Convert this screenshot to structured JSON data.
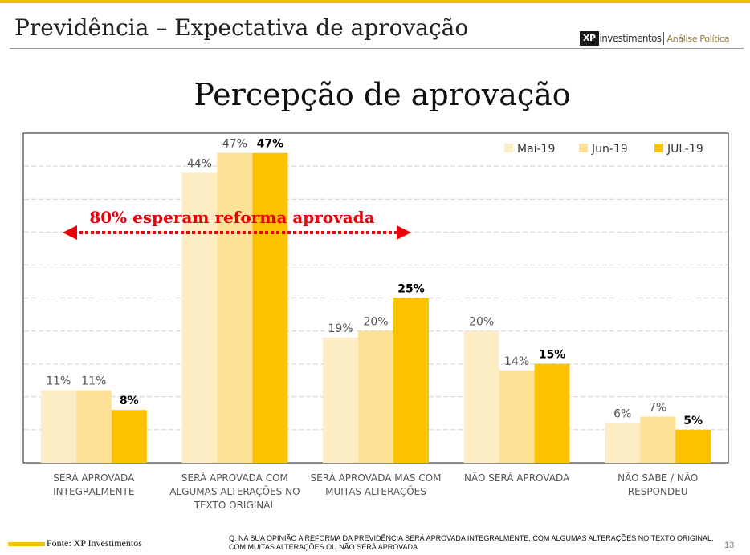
{
  "header": {
    "title": "Previdência – Expectativa de aprovação",
    "brand_logo": "XP",
    "brand_name": "investimentos",
    "brand_tag": "Análise Política"
  },
  "colors": {
    "accent": "#f5c100",
    "mai19": "#fdedc4",
    "jun19": "#fce197",
    "jul19": "#fcc200",
    "annotation": "#e8000b",
    "grid": "#d0d0d0"
  },
  "chart_data": {
    "type": "bar",
    "title": "Percepção de aprovação",
    "categories": [
      [
        "SERÁ APROVADA",
        "INTEGRALMENTE"
      ],
      [
        "SERÁ APROVADA COM",
        "ALGUMAS ALTERAÇÕES NO",
        "TEXTO ORIGINAL"
      ],
      [
        "SERÁ APROVADA MAS COM",
        "MUITAS ALTERAÇÕES"
      ],
      [
        "NÃO SERÁ APROVADA"
      ],
      [
        "NÃO SABE / NÃO",
        "RESPONDEU"
      ]
    ],
    "series": [
      {
        "name": "Mai-19",
        "values": [
          11,
          44,
          19,
          20,
          6
        ],
        "color": "#fdedc4",
        "bold_labels": false
      },
      {
        "name": "Jun-19",
        "values": [
          11,
          47,
          20,
          14,
          7
        ],
        "color": "#fce197",
        "bold_labels": false
      },
      {
        "name": "JUL-19",
        "values": [
          8,
          47,
          25,
          15,
          5
        ],
        "color": "#fcc200",
        "bold_labels": true
      }
    ],
    "value_suffix": "%",
    "ylim": [
      0,
      50
    ],
    "grid": true,
    "legend_position": "top-right",
    "annotation": {
      "text": "80% esperam reforma aprovada",
      "arrow": "double-headed dotted"
    }
  },
  "footer": {
    "source": "Fonte: XP Investimentos",
    "note_line1": "Q. NA SUA OPINIÃO A REFORMA DA PREVIDÊNCIA SERÁ APROVADA INTEGRALMENTE, COM ALGUMAS ALTERAÇÕES NO TEXTO ORIGINAL,",
    "note_line2": "COM MUITAS ALTERAÇÕES OU NÃO SERÁ APROVADA",
    "page": "13"
  }
}
